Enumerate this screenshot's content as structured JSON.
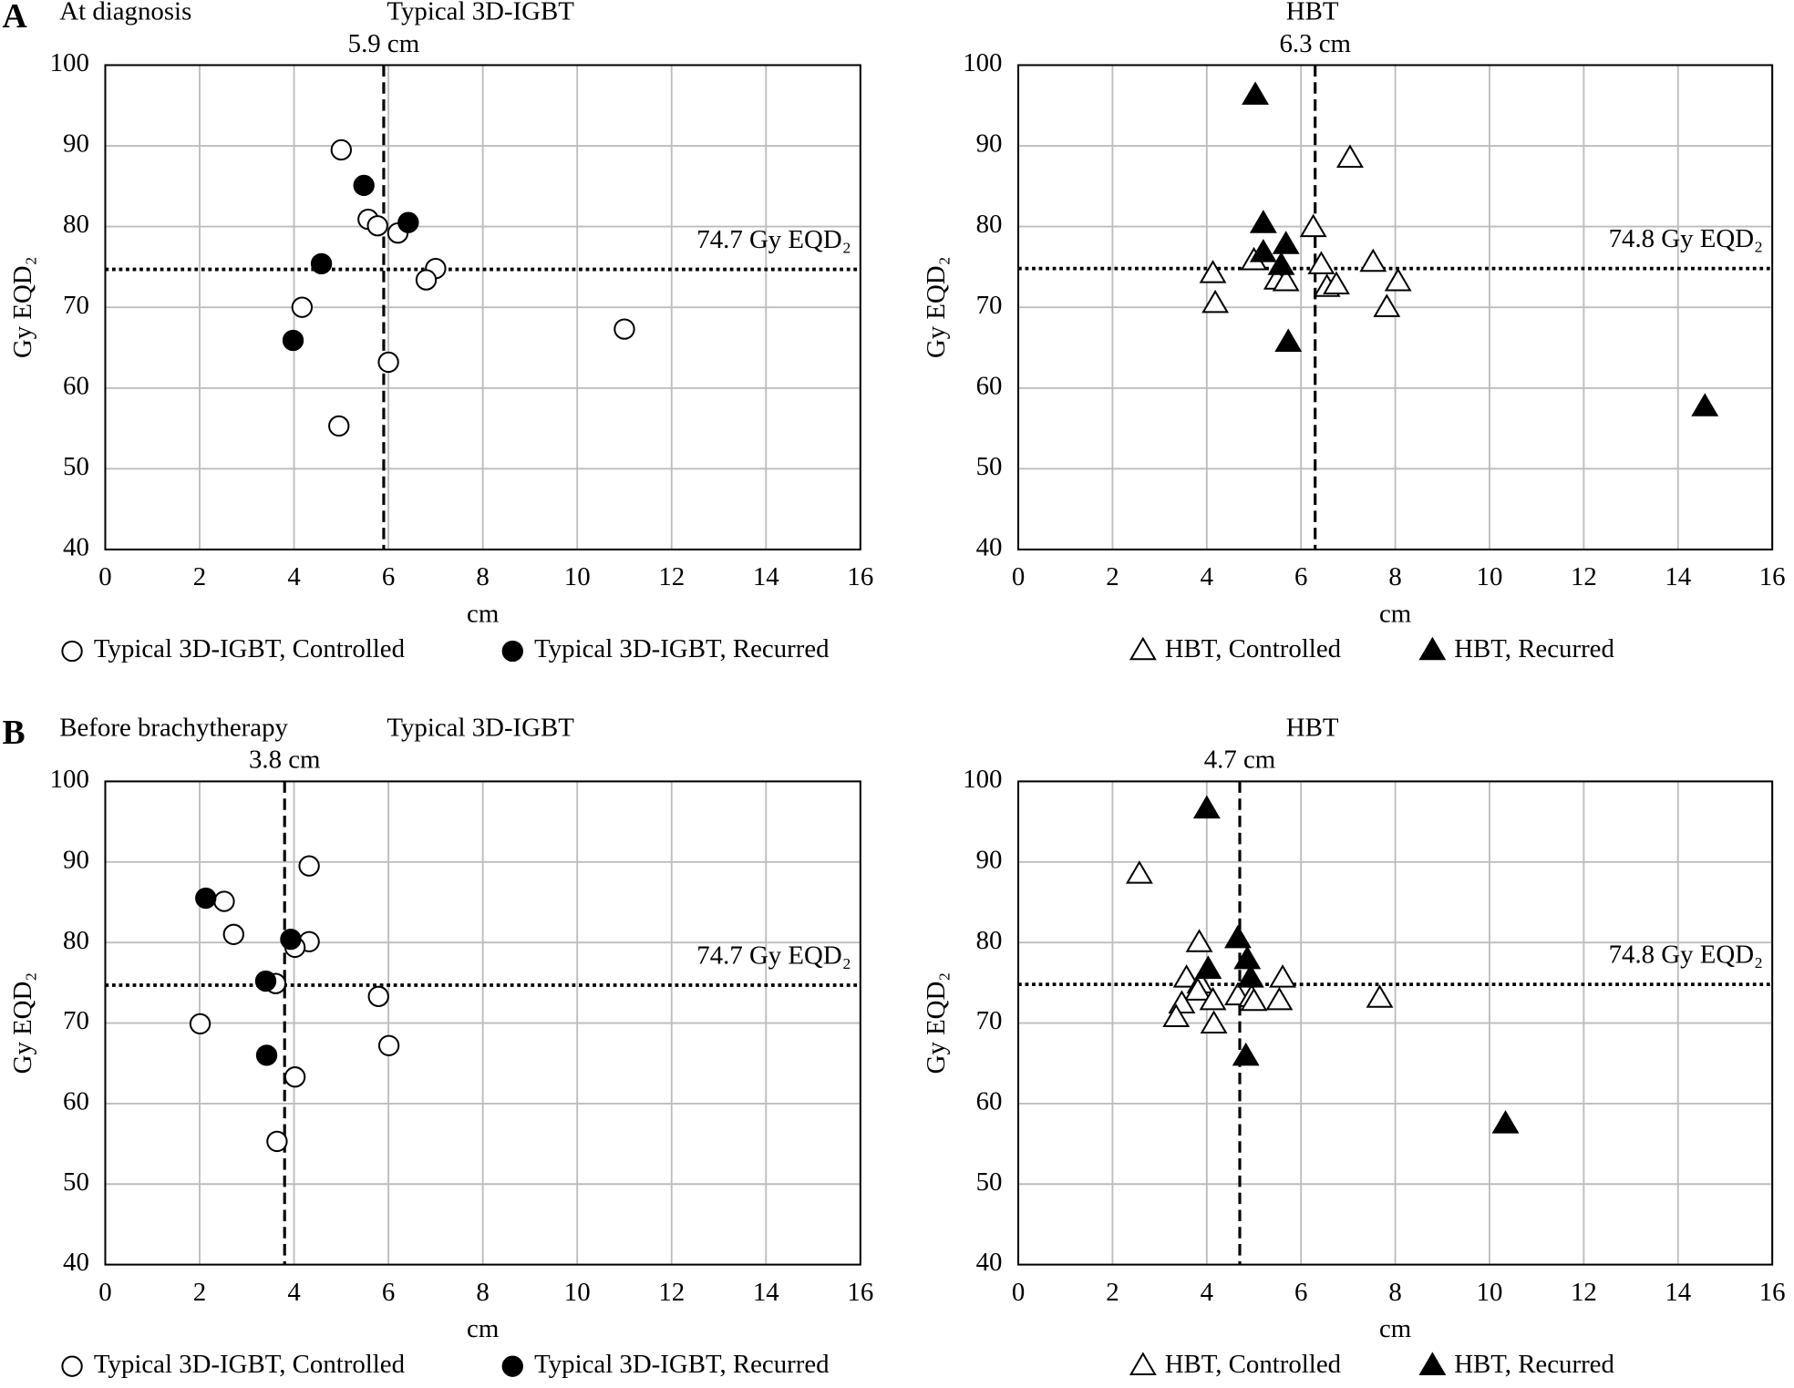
{
  "chart_data": [
    {
      "type": "scatter",
      "panel_label": "A",
      "subtitle": "At diagnosis",
      "title": "Typical 3D-IGBT",
      "xlabel": "cm",
      "ylabel": "Gy EQD₂",
      "xlim": [
        0,
        16
      ],
      "xticks": [
        0,
        2,
        4,
        6,
        8,
        10,
        12,
        14,
        16
      ],
      "ylim": [
        40,
        100
      ],
      "yticks": [
        40,
        50,
        60,
        70,
        80,
        90,
        100
      ],
      "grid": true,
      "hline": {
        "value": 74.7,
        "label": "74.7 Gy EQD₂"
      },
      "vline": {
        "value": 5.9,
        "label": "5.9 cm"
      },
      "series": [
        {
          "name": "Typical 3D-IGBT, Controlled",
          "marker": "circle",
          "color": "#ffffff",
          "x": [
            5.0,
            5.57,
            5.77,
            6.2,
            7.0,
            6.8,
            4.17,
            11.0,
            6.0,
            4.95
          ],
          "values": [
            89.5,
            80.9,
            80.1,
            79.2,
            74.8,
            73.4,
            70.0,
            67.3,
            63.2,
            55.3
          ]
        },
        {
          "name": "Typical 3D-IGBT, Recurred",
          "marker": "circle",
          "color": "#000000",
          "x": [
            5.48,
            6.42,
            4.58,
            3.98
          ],
          "values": [
            85.1,
            80.5,
            75.4,
            65.9
          ]
        }
      ]
    },
    {
      "type": "scatter",
      "title": "HBT",
      "xlabel": "cm",
      "ylabel": "Gy EQD₂",
      "xlim": [
        0,
        16
      ],
      "xticks": [
        0,
        2,
        4,
        6,
        8,
        10,
        12,
        14,
        16
      ],
      "ylim": [
        40,
        100
      ],
      "yticks": [
        40,
        50,
        60,
        70,
        80,
        90,
        100
      ],
      "grid": true,
      "hline": {
        "value": 74.8,
        "label": "74.8 Gy EQD₂"
      },
      "vline": {
        "value": 6.3,
        "label": "6.3 cm"
      },
      "series": [
        {
          "name": "HBT, Controlled",
          "marker": "triangle",
          "color": "#ffffff",
          "x": [
            7.04,
            6.26,
            5.0,
            6.43,
            7.53,
            4.13,
            5.49,
            5.68,
            6.55,
            6.75,
            8.06,
            4.18,
            7.82
          ],
          "values": [
            88.4,
            79.8,
            75.7,
            75.2,
            75.5,
            74.1,
            73.3,
            73.1,
            72.4,
            72.7,
            73.1,
            70.4,
            69.9
          ]
        },
        {
          "name": "HBT, Recurred",
          "marker": "triangle",
          "color": "#000000",
          "x": [
            5.03,
            5.2,
            5.2,
            5.68,
            5.58,
            5.73,
            14.57
          ],
          "values": [
            96.2,
            80.3,
            76.7,
            77.7,
            75.1,
            65.6,
            57.6
          ]
        }
      ]
    },
    {
      "type": "scatter",
      "panel_label": "B",
      "subtitle": "Before brachytherapy",
      "title": "Typical 3D-IGBT",
      "xlabel": "cm",
      "ylabel": "Gy EQD₂",
      "xlim": [
        0,
        16
      ],
      "xticks": [
        0,
        2,
        4,
        6,
        8,
        10,
        12,
        14,
        16
      ],
      "ylim": [
        40,
        100
      ],
      "yticks": [
        40,
        50,
        60,
        70,
        80,
        90,
        100
      ],
      "grid": true,
      "hline": {
        "value": 74.7,
        "label": "74.7 Gy EQD₂"
      },
      "vline": {
        "value": 3.8,
        "label": "3.8 cm"
      },
      "series": [
        {
          "name": "Typical 3D-IGBT, Controlled",
          "marker": "circle",
          "color": "#ffffff",
          "x": [
            4.32,
            2.52,
            2.72,
            4.32,
            4.02,
            3.61,
            5.79,
            2.01,
            6.01,
            4.02,
            3.64
          ],
          "values": [
            89.5,
            85.1,
            81.0,
            80.1,
            79.4,
            74.9,
            73.3,
            69.9,
            67.2,
            63.3,
            55.3
          ]
        },
        {
          "name": "Typical 3D-IGBT, Recurred",
          "marker": "circle",
          "color": "#000000",
          "x": [
            2.13,
            3.93,
            3.4,
            3.42
          ],
          "values": [
            85.5,
            80.4,
            75.2,
            66.0
          ]
        }
      ]
    },
    {
      "type": "scatter",
      "title": "HBT",
      "xlabel": "cm",
      "ylabel": "Gy EQD₂",
      "xlim": [
        0,
        16
      ],
      "xticks": [
        0,
        2,
        4,
        6,
        8,
        10,
        12,
        14,
        16
      ],
      "ylim": [
        40,
        100
      ],
      "yticks": [
        40,
        50,
        60,
        70,
        80,
        90,
        100
      ],
      "grid": true,
      "hline": {
        "value": 74.8,
        "label": "74.8 Gy EQD₂"
      },
      "vline": {
        "value": 4.7,
        "label": "4.7 cm"
      },
      "series": [
        {
          "name": "HBT, Controlled",
          "marker": "triangle",
          "color": "#ffffff",
          "x": [
            2.57,
            3.84,
            3.57,
            3.86,
            3.81,
            5.61,
            4.66,
            4.95,
            5.0,
            4.13,
            3.47,
            5.54,
            7.67,
            3.35,
            4.15
          ],
          "values": [
            88.4,
            79.9,
            75.5,
            74.8,
            73.9,
            75.5,
            73.3,
            73.1,
            72.6,
            72.7,
            72.3,
            72.7,
            73.0,
            70.6,
            69.8
          ]
        },
        {
          "name": "HBT, Recurred",
          "marker": "triangle",
          "color": "#000000",
          "x": [
            4.0,
            4.66,
            4.03,
            4.86,
            4.93,
            4.83,
            10.34
          ],
          "values": [
            96.5,
            80.4,
            76.6,
            77.8,
            75.5,
            65.8,
            57.4
          ]
        }
      ]
    }
  ]
}
